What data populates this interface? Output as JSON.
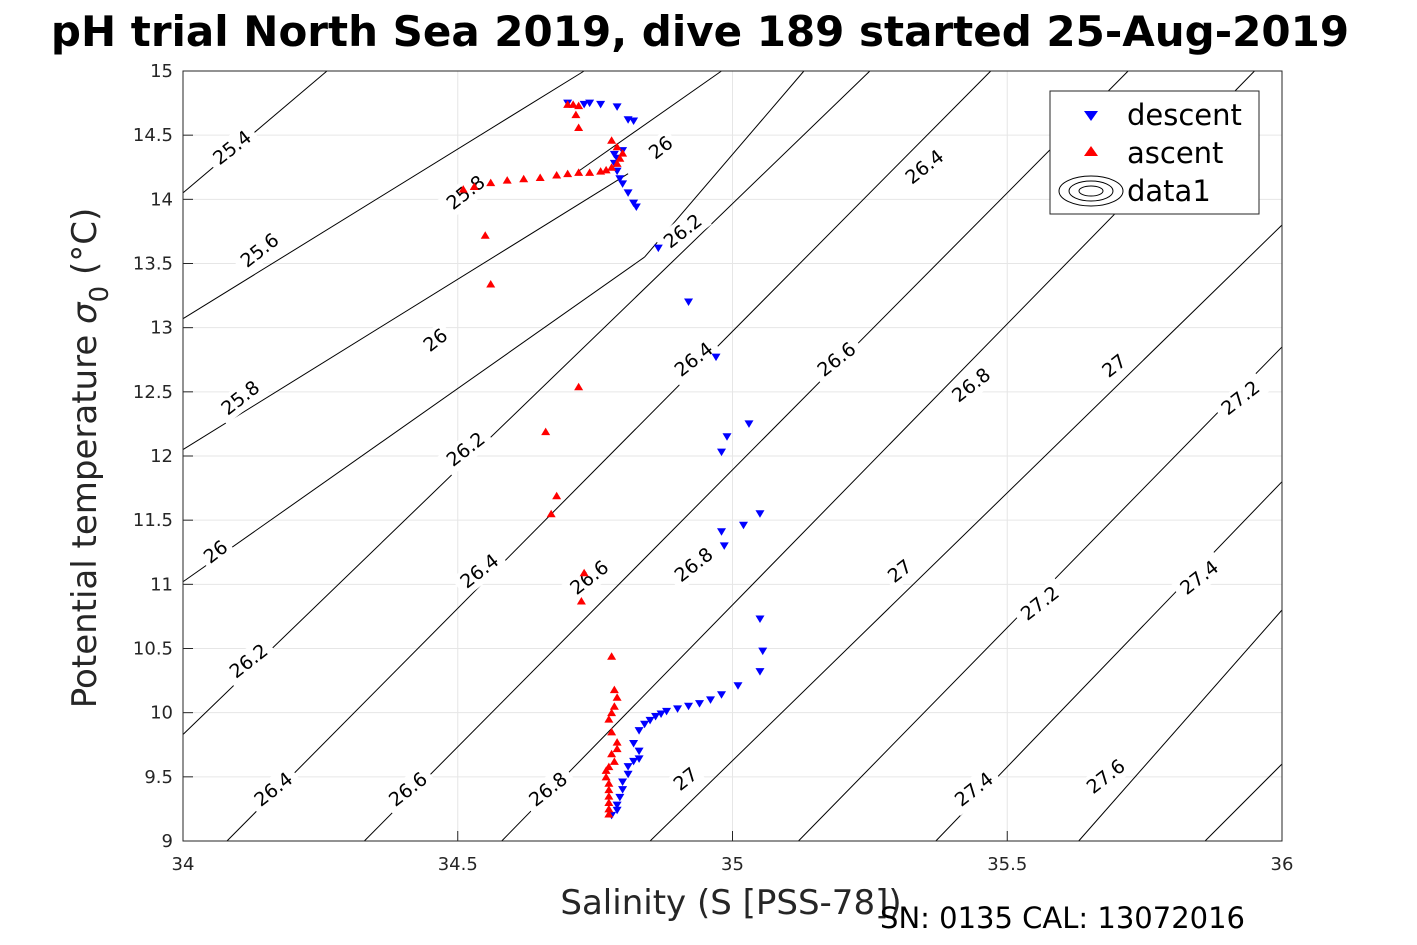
{
  "chart_data": {
    "type": "scatter",
    "title": "pH trial North Sea 2019, dive 189 started 25-Aug-2019",
    "xlabel": "Salinity (S [PSS-78])",
    "ylabel_main": "Potential temperature ",
    "ylabel_sigma": "σ",
    "ylabel_sub": "0",
    "ylabel_unit": " (°C)",
    "xlim": [
      34,
      36
    ],
    "ylim": [
      9,
      15
    ],
    "xticks": [
      34,
      34.5,
      35,
      35.5,
      36
    ],
    "yticks": [
      9,
      9.5,
      10,
      10.5,
      11,
      11.5,
      12,
      12.5,
      13,
      13.5,
      14,
      14.5,
      15
    ],
    "grid": true,
    "legend_position": "top-right",
    "legend": [
      "descent",
      "ascent",
      "data1"
    ],
    "footer": "SN: 0135  CAL: 13072016",
    "contours": [
      {
        "x": [
          34.0,
          34.262
        ],
        "y": [
          14.05,
          15.0
        ],
        "label": "25.4",
        "label_at": [
          34.09,
          14.4
        ]
      },
      {
        "x": [
          34.0,
          34.73
        ],
        "y": [
          13.07,
          15.0
        ],
        "label": "25.6",
        "label_at": [
          34.14,
          13.6
        ]
      },
      {
        "x": [
          34.0,
          34.81
        ],
        "y": [
          12.05,
          14.2
        ],
        "label": "25.8",
        "label_at": [
          34.105,
          12.45
        ]
      },
      {
        "x": [
          34.72,
          34.98
        ],
        "y": [
          14.22,
          15.0
        ],
        "label": "25.8",
        "label_at": [
          34.515,
          14.05
        ]
      },
      {
        "x": [
          34.0,
          34.84
        ],
        "y": [
          11.02,
          13.55
        ],
        "label": "26",
        "label_at": [
          34.06,
          11.25
        ]
      },
      {
        "x": [
          34.84,
          35.13
        ],
        "y": [
          13.55,
          15.0
        ],
        "label": "26",
        "label_at": [
          34.87,
          14.4
        ]
      },
      {
        "x": [
          34.0,
          35.25
        ],
        "y": [
          9.83,
          15.0
        ],
        "label": "26.2",
        "label_at": [
          34.12,
          10.4
        ]
      },
      {
        "x": [
          34.08,
          35.47
        ],
        "y": [
          9.0,
          15.0
        ],
        "label": "26.2",
        "label_at": [
          34.515,
          12.05
        ]
      },
      {
        "x": [
          34.33,
          35.72
        ],
        "y": [
          9.0,
          15.0
        ],
        "label": "26.4",
        "label_at": [
          34.165,
          9.4
        ]
      },
      {
        "x": [
          34.58,
          35.95
        ],
        "y": [
          9.0,
          15.0
        ],
        "label": "26.6",
        "label_at": [
          34.41,
          9.4
        ]
      },
      {
        "x": [
          34.85,
          36.0
        ],
        "y": [
          9.0,
          13.8
        ],
        "label": "26.8",
        "label_at": [
          34.665,
          9.4
        ]
      },
      {
        "x": [
          35.12,
          36.0
        ],
        "y": [
          9.0,
          12.85
        ],
        "label": "27",
        "label_at": [
          34.915,
          9.48
        ]
      },
      {
        "x": [
          35.37,
          36.0
        ],
        "y": [
          9.0,
          11.8
        ],
        "label": "27.4",
        "label_at": [
          35.44,
          9.4
        ]
      },
      {
        "x": [
          35.63,
          36.0
        ],
        "y": [
          9.0,
          10.8
        ],
        "label": "27.6",
        "label_at": [
          35.68,
          9.5
        ]
      },
      {
        "x": [
          35.86,
          36.0
        ],
        "y": [
          9.0,
          9.6
        ],
        "label": "",
        "label_at": null
      }
    ],
    "extra_contour_labels": [
      {
        "label": "26",
        "at": [
          34.46,
          12.9
        ]
      },
      {
        "label": "26.4",
        "at": [
          34.54,
          11.1
        ]
      },
      {
        "label": "26.2",
        "at": [
          34.91,
          13.75
        ]
      },
      {
        "label": "26.4",
        "at": [
          34.93,
          12.75
        ]
      },
      {
        "label": "26.6",
        "at": [
          34.74,
          11.05
        ]
      },
      {
        "label": "26.8",
        "at": [
          34.93,
          11.15
        ]
      },
      {
        "label": "26.4",
        "at": [
          35.35,
          14.25
        ]
      },
      {
        "label": "26.6",
        "at": [
          35.19,
          12.75
        ]
      },
      {
        "label": "26.8",
        "at": [
          35.435,
          12.55
        ]
      },
      {
        "label": "27",
        "at": [
          35.305,
          11.1
        ]
      },
      {
        "label": "27",
        "at": [
          35.695,
          12.7
        ]
      },
      {
        "label": "27.2",
        "at": [
          35.925,
          12.45
        ]
      },
      {
        "label": "27.2",
        "at": [
          35.56,
          10.85
        ]
      },
      {
        "label": "27.4",
        "at": [
          35.85,
          11.05
        ]
      }
    ],
    "series": [
      {
        "name": "descent",
        "marker": "triangle-down",
        "color": "#0000ff",
        "points": [
          [
            34.7,
            14.75
          ],
          [
            34.73,
            14.74
          ],
          [
            34.74,
            14.75
          ],
          [
            34.76,
            14.74
          ],
          [
            34.79,
            14.72
          ],
          [
            34.81,
            14.62
          ],
          [
            34.82,
            14.61
          ],
          [
            34.8,
            14.38
          ],
          [
            34.785,
            14.35
          ],
          [
            34.79,
            14.32
          ],
          [
            34.785,
            14.28
          ],
          [
            34.79,
            14.22
          ],
          [
            34.795,
            14.16
          ],
          [
            34.8,
            14.12
          ],
          [
            34.81,
            14.05
          ],
          [
            34.82,
            13.97
          ],
          [
            34.825,
            13.94
          ],
          [
            34.865,
            13.62
          ],
          [
            34.92,
            13.2
          ],
          [
            34.97,
            12.77
          ],
          [
            35.03,
            12.25
          ],
          [
            34.99,
            12.15
          ],
          [
            34.98,
            12.03
          ],
          [
            35.05,
            11.55
          ],
          [
            35.02,
            11.46
          ],
          [
            34.98,
            11.41
          ],
          [
            34.985,
            11.3
          ],
          [
            35.05,
            10.73
          ],
          [
            35.055,
            10.48
          ],
          [
            35.05,
            10.32
          ],
          [
            35.01,
            10.21
          ],
          [
            34.98,
            10.14
          ],
          [
            34.96,
            10.1
          ],
          [
            34.94,
            10.07
          ],
          [
            34.92,
            10.05
          ],
          [
            34.9,
            10.03
          ],
          [
            34.88,
            10.01
          ],
          [
            34.87,
            9.99
          ],
          [
            34.86,
            9.97
          ],
          [
            34.85,
            9.94
          ],
          [
            34.84,
            9.91
          ],
          [
            34.83,
            9.86
          ],
          [
            34.82,
            9.76
          ],
          [
            34.83,
            9.7
          ],
          [
            34.83,
            9.64
          ],
          [
            34.82,
            9.62
          ],
          [
            34.81,
            9.58
          ],
          [
            34.81,
            9.52
          ],
          [
            34.8,
            9.46
          ],
          [
            34.8,
            9.4
          ],
          [
            34.795,
            9.34
          ],
          [
            34.79,
            9.28
          ],
          [
            34.79,
            9.24
          ],
          [
            34.78,
            9.2
          ]
        ]
      },
      {
        "name": "ascent",
        "marker": "triangle-up",
        "color": "#ff0000",
        "points": [
          [
            34.7,
            14.74
          ],
          [
            34.71,
            14.74
          ],
          [
            34.72,
            14.73
          ],
          [
            34.715,
            14.66
          ],
          [
            34.72,
            14.56
          ],
          [
            34.78,
            14.46
          ],
          [
            34.79,
            14.41
          ],
          [
            34.8,
            14.36
          ],
          [
            34.795,
            14.32
          ],
          [
            34.79,
            14.28
          ],
          [
            34.78,
            14.25
          ],
          [
            34.77,
            14.23
          ],
          [
            34.76,
            14.22
          ],
          [
            34.74,
            14.21
          ],
          [
            34.72,
            14.21
          ],
          [
            34.7,
            14.2
          ],
          [
            34.68,
            14.19
          ],
          [
            34.65,
            14.17
          ],
          [
            34.62,
            14.16
          ],
          [
            34.59,
            14.15
          ],
          [
            34.56,
            14.13
          ],
          [
            34.53,
            14.1
          ],
          [
            34.51,
            14.08
          ],
          [
            34.55,
            13.72
          ],
          [
            34.56,
            13.34
          ],
          [
            34.72,
            12.54
          ],
          [
            34.66,
            12.19
          ],
          [
            34.68,
            11.69
          ],
          [
            34.67,
            11.55
          ],
          [
            34.73,
            11.09
          ],
          [
            34.725,
            10.87
          ],
          [
            34.78,
            10.44
          ],
          [
            34.785,
            10.18
          ],
          [
            34.79,
            10.12
          ],
          [
            34.785,
            10.05
          ],
          [
            34.78,
            10.0
          ],
          [
            34.775,
            9.95
          ],
          [
            34.78,
            9.85
          ],
          [
            34.79,
            9.77
          ],
          [
            34.79,
            9.72
          ],
          [
            34.78,
            9.68
          ],
          [
            34.785,
            9.62
          ],
          [
            34.775,
            9.58
          ],
          [
            34.77,
            9.55
          ],
          [
            34.77,
            9.5
          ],
          [
            34.775,
            9.45
          ],
          [
            34.775,
            9.4
          ],
          [
            34.775,
            9.35
          ],
          [
            34.775,
            9.3
          ],
          [
            34.775,
            9.25
          ],
          [
            34.775,
            9.21
          ]
        ]
      }
    ]
  }
}
